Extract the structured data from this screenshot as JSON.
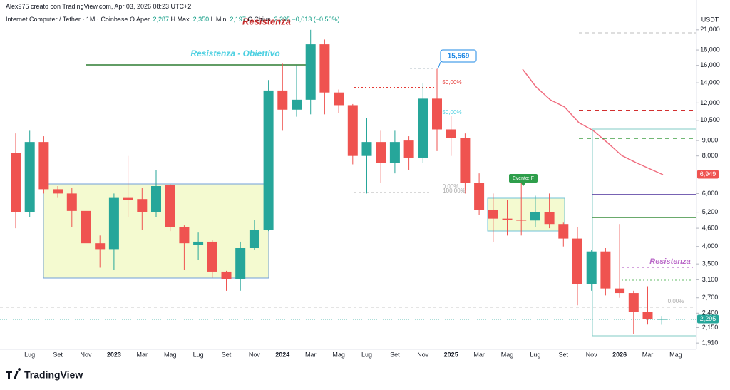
{
  "header": {
    "credit": "Alex975 creato con TradingView.com, Apr 03, 2026 08:23 UTC+2",
    "symbol": "Internet Computer / Tether · 1M · Coinbase",
    "fields": [
      {
        "key": "O",
        "name": "Aper.",
        "value": "2,287"
      },
      {
        "key": "H",
        "name": "Max.",
        "value": "2,350"
      },
      {
        "key": "L",
        "name": "Min.",
        "value": "2,197"
      },
      {
        "key": "C",
        "name": "Chius.",
        "value": "2,295"
      }
    ],
    "change": "−0,013 (−0,56%)"
  },
  "branding": "TradingView",
  "chart_data": {
    "type": "candlestick",
    "currency": "USDT",
    "log_scale": true,
    "grid": false,
    "up_color": "#26a69a",
    "down_color": "#ef5350",
    "categories": [
      null,
      "Lug",
      null,
      "Set",
      null,
      "Nov",
      null,
      "2023",
      null,
      "Mar",
      null,
      "Mag",
      null,
      "Lug",
      null,
      "Set",
      null,
      "Nov",
      null,
      "2024",
      null,
      "Mar",
      null,
      "Mag",
      null,
      "Lug",
      null,
      "Set",
      null,
      "Nov",
      null,
      "2025",
      null,
      "Mar",
      null,
      "Mag",
      null,
      "Lug",
      null,
      "Set",
      null,
      "Nov",
      null,
      "2026",
      null,
      "Mar",
      null,
      "Mag"
    ],
    "open": [
      8200,
      5200,
      8900,
      6200,
      6000,
      5250,
      4100,
      3920,
      5800,
      5750,
      5200,
      6400,
      4650,
      4050,
      4150,
      3300,
      3120,
      3950,
      4550,
      13200,
      11400,
      12300,
      18800,
      13000,
      11800,
      8000,
      8900,
      7600,
      9000,
      7900,
      12400,
      9800,
      9200,
      6500,
      5300,
      4950,
      4900,
      4880,
      5200,
      4750,
      4250,
      3000,
      3850,
      2900,
      2800,
      2420,
      2287,
      null
    ],
    "high": [
      9500,
      9700,
      9300,
      6350,
      6250,
      5700,
      4350,
      6000,
      8000,
      6250,
      7200,
      6450,
      4700,
      4450,
      4200,
      3320,
      4150,
      4900,
      14300,
      16200,
      16000,
      21000,
      19500,
      13300,
      11900,
      10700,
      9700,
      9700,
      9300,
      14000,
      15569,
      10900,
      9500,
      7000,
      6000,
      5700,
      6500,
      5900,
      6000,
      4800,
      4650,
      3900,
      3950,
      4750,
      2850,
      2950,
      2350,
      null
    ],
    "low": [
      4600,
      5000,
      6000,
      5800,
      4650,
      3500,
      3400,
      3350,
      5000,
      4550,
      5000,
      4500,
      3350,
      3600,
      3150,
      2850,
      2850,
      3900,
      4500,
      9700,
      10800,
      11000,
      11000,
      11100,
      7500,
      6000,
      6500,
      7000,
      7200,
      7600,
      8300,
      8000,
      6000,
      5100,
      4150,
      4350,
      4350,
      4650,
      4600,
      4000,
      2550,
      2850,
      2750,
      2700,
      2050,
      2200,
      2197,
      null
    ],
    "close": [
      5200,
      8900,
      6200,
      6000,
      5250,
      4100,
      3920,
      5800,
      5700,
      5200,
      6350,
      4650,
      4100,
      4150,
      3300,
      3120,
      3950,
      4550,
      13200,
      11400,
      12300,
      18800,
      13000,
      11800,
      8000,
      8900,
      7600,
      8900,
      7900,
      12400,
      9800,
      9200,
      6500,
      5300,
      4950,
      4900,
      4880,
      5200,
      4750,
      4250,
      3000,
      3850,
      2900,
      2800,
      2420,
      2300,
      2295,
      null
    ],
    "ylim": [
      1820,
      22400
    ],
    "yticks": [
      {
        "value": 1910,
        "label": "1,910"
      },
      {
        "value": 2150,
        "label": "2,150"
      },
      {
        "value": 2400,
        "label": "2,400"
      },
      {
        "value": 2700,
        "label": "2,700"
      },
      {
        "value": 3100,
        "label": "3,100"
      },
      {
        "value": 3500,
        "label": "3,500"
      },
      {
        "value": 4000,
        "label": "4,000"
      },
      {
        "value": 4600,
        "label": "4,600"
      },
      {
        "value": 5200,
        "label": "5,200"
      },
      {
        "value": 6000,
        "label": "6,000"
      },
      {
        "value": 8000,
        "label": "8,000"
      },
      {
        "value": 9000,
        "label": "9,000"
      },
      {
        "value": 10500,
        "label": "10,500"
      },
      {
        "value": 12000,
        "label": "12,000"
      },
      {
        "value": 14000,
        "label": "14,000"
      },
      {
        "value": 16000,
        "label": "16,000"
      },
      {
        "value": 18000,
        "label": "18,000"
      },
      {
        "value": 21000,
        "label": "21,000"
      }
    ],
    "price_tags": [
      {
        "value": 6949,
        "label": "6,949",
        "color": "#ef5350"
      },
      {
        "value": 2295,
        "label": "2,295",
        "color": "#26a69a"
      }
    ],
    "annotations": [
      "Resistenza",
      "Resistenza - Obiettivo",
      "15,569",
      "50,00%",
      "50,00%",
      "0,00%",
      "100,00%",
      "Evento: F",
      "Resistenza",
      "0,00%"
    ]
  }
}
